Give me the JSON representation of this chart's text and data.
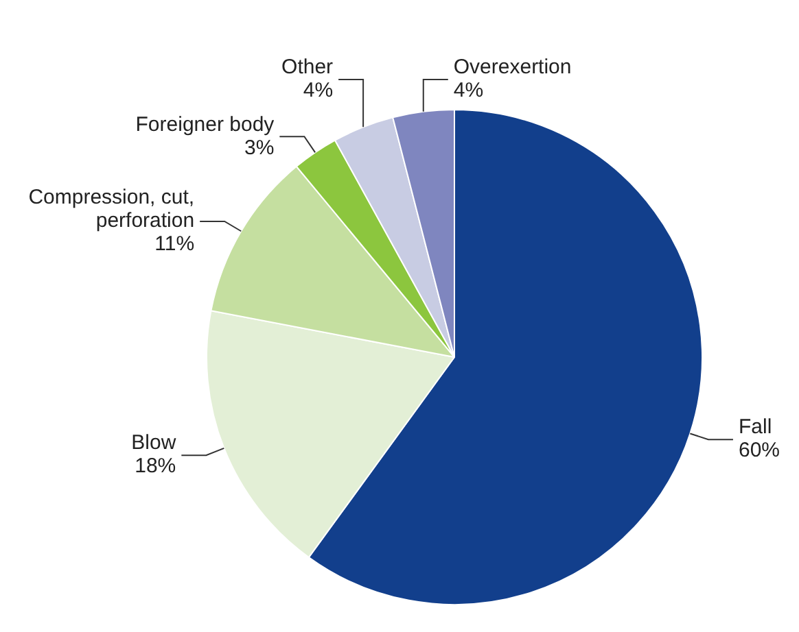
{
  "chart_data": {
    "type": "pie",
    "categories": [
      "Fall",
      "Blow",
      "Compression, cut, perforation",
      "Foreigner body",
      "Other",
      "Overexertion"
    ],
    "values": [
      60,
      18,
      11,
      3,
      4,
      4
    ],
    "value_labels": [
      "60%",
      "18%",
      "11%",
      "3%",
      "4%",
      "4%"
    ],
    "colors": [
      "#123f8c",
      "#e3efd6",
      "#c5dfa0",
      "#8cc63e",
      "#c8cce3",
      "#7f86bf"
    ],
    "legend": false
  }
}
